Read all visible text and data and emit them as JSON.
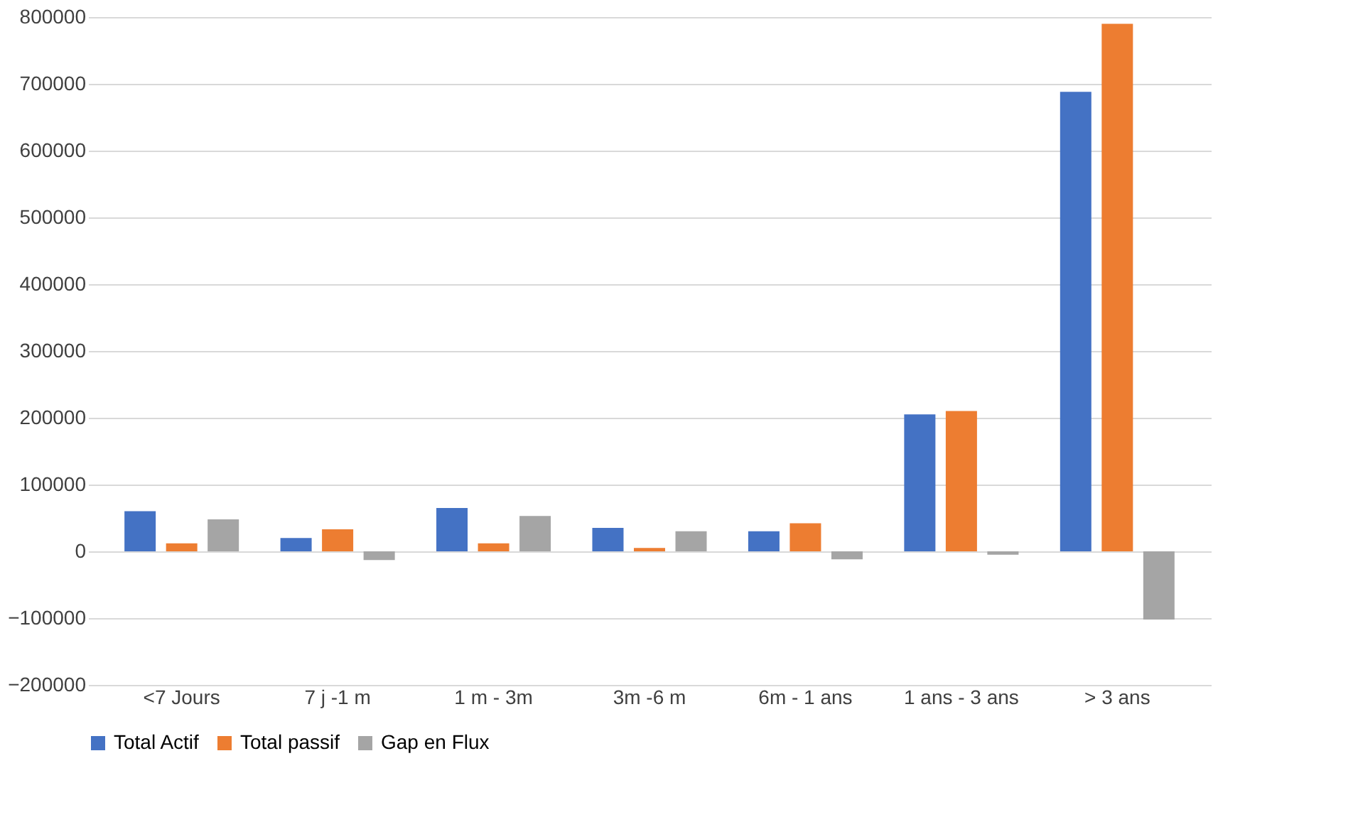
{
  "chart_data": {
    "type": "bar",
    "categories": [
      "<7 Jours",
      "7 j -1 m",
      "1 m - 3m",
      "3m -6 m",
      "6m - 1 ans",
      "1 ans - 3 ans",
      "> 3 ans"
    ],
    "series": [
      {
        "name": "Total Actif",
        "color": "#4472c4",
        "values": [
          60000,
          20000,
          65000,
          35000,
          30000,
          205000,
          688000
        ]
      },
      {
        "name": "Total passif",
        "color": "#ed7d31",
        "values": [
          12000,
          33000,
          12000,
          5000,
          42000,
          210000,
          790000
        ]
      },
      {
        "name": "Gap en Flux",
        "color": "#a5a5a5",
        "values": [
          48000,
          -13000,
          53000,
          30000,
          -12000,
          -5000,
          -102000
        ]
      }
    ],
    "ylim": [
      -200000,
      800000
    ],
    "yticks": [
      -200000,
      -100000,
      0,
      100000,
      200000,
      300000,
      400000,
      500000,
      600000,
      700000,
      800000
    ],
    "grid": "y",
    "legend": "bottom"
  }
}
